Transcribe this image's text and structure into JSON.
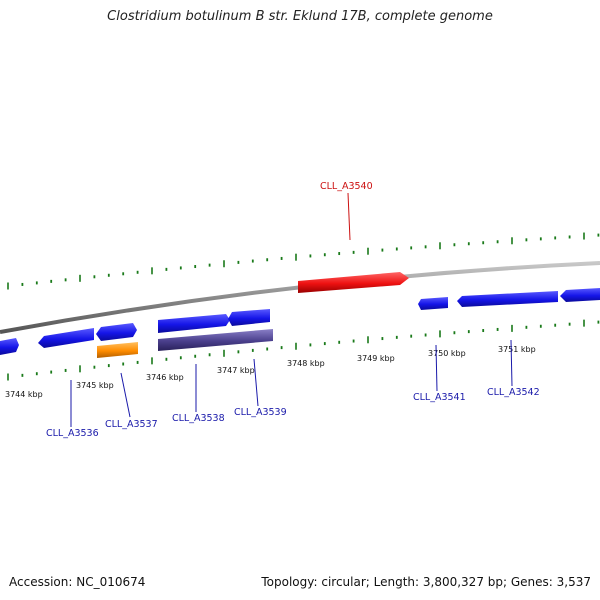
{
  "title": "Clostridium botulinum B str. Eklund 17B, complete genome",
  "footer": {
    "accession": "Accession: NC_010674",
    "summary": "Topology: circular; Length: 3,800,327 bp; Genes: 3,537"
  },
  "colors": {
    "backbone": "#8a8a8a",
    "ticks": "#1a7a1a",
    "forward_gene": "#1a1aee",
    "forward_label": "#1a1aaa",
    "highlighted_gene": "#ee1111",
    "highlighted_label": "#cc1111",
    "orange_feature": "#ff8c00",
    "purple_feature": "#4a3f8c"
  },
  "tick_labels": [
    "3744 kbp",
    "3745 kbp",
    "3746 kbp",
    "3747 kbp",
    "3748 kbp",
    "3749 kbp",
    "3750 kbp",
    "3751 kbp"
  ],
  "gene_labels": {
    "cll_a3540": "CLL_A3540",
    "cll_a3536": "CLL_A3536",
    "cll_a3537": "CLL_A3537",
    "cll_a3538": "CLL_A3538",
    "cll_a3539": "CLL_A3539",
    "cll_a3541": "CLL_A3541",
    "cll_a3542": "CLL_A3542"
  }
}
